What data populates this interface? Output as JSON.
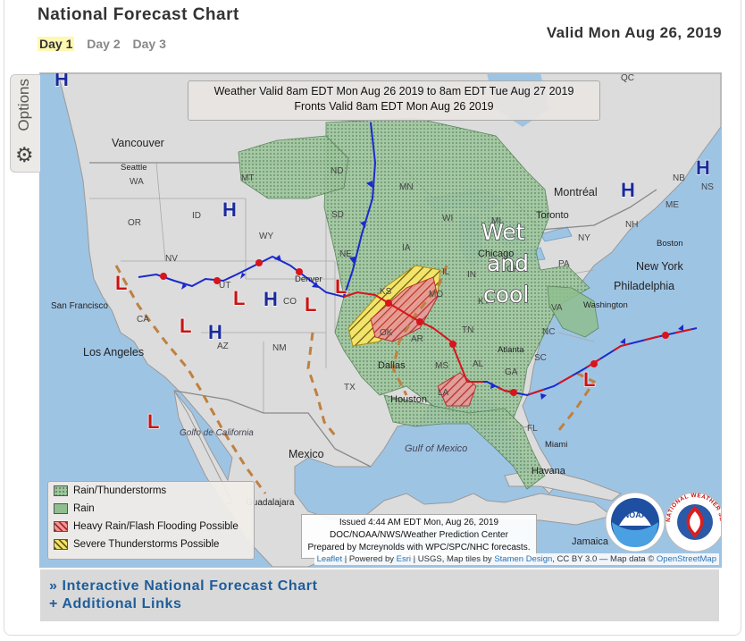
{
  "page": {
    "title": "National Forecast Chart",
    "valid": "Valid Mon Aug 26, 2019",
    "tabs": [
      {
        "label": "Day 1",
        "active": true
      },
      {
        "label": "Day 2",
        "active": false
      },
      {
        "label": "Day 3",
        "active": false
      }
    ]
  },
  "map": {
    "options_label": "Options",
    "options_icon": "gear-icon",
    "header_line1": "Weather Valid 8am EDT Mon Aug 26 2019 to 8am EDT Tue Aug 27 2019",
    "header_line2": "Fronts Valid 8am EDT Mon Aug 26 2019",
    "annotation": [
      "Wet",
      "and",
      "cool"
    ],
    "highs": [
      "H",
      "H",
      "H",
      "H",
      "H",
      "H"
    ],
    "lows": [
      "L",
      "L",
      "L",
      "L",
      "L",
      "L",
      "L"
    ],
    "cities": [
      "Vancouver",
      "Seattle",
      "San Francisco",
      "Los Angeles",
      "Denver",
      "Dallas",
      "Houston",
      "Atlanta",
      "Chicago",
      "Toronto",
      "Montréal",
      "New York",
      "Philadelphia",
      "Washington",
      "Boston",
      "Miami",
      "Havana",
      "Mexico",
      "Guadalajara",
      "Jamaica",
      "Gulf of Mexico",
      "Golfo de California"
    ],
    "states": [
      "WA",
      "OR",
      "CA",
      "ID",
      "MT",
      "WY",
      "NV",
      "UT",
      "AZ",
      "CO",
      "NM",
      "ND",
      "SD",
      "NE",
      "KS",
      "OK",
      "TX",
      "MN",
      "IA",
      "MO",
      "AR",
      "LA",
      "MS",
      "AL",
      "GA",
      "TN",
      "KY",
      "IL",
      "IN",
      "OH",
      "MI",
      "WI",
      "PA",
      "NY",
      "VA",
      "NC",
      "SC",
      "FL",
      "NH",
      "ME",
      "NB",
      "NS",
      "QC"
    ],
    "legend": [
      {
        "label": "Rain/Thunderstorms",
        "color": "#8fb88f"
      },
      {
        "label": "Rain",
        "color": "#8fbf8f"
      },
      {
        "label": "Heavy Rain/Flash Flooding Possible",
        "color": "#d95a5a"
      },
      {
        "label": "Severe Thunderstorms Possible",
        "color": "#e8d64a"
      }
    ],
    "issued_lines": [
      "Issued 4:44 AM EDT Mon, Aug 26, 2019",
      "DOC/NOAA/NWS/Weather Prediction Center",
      "Prepared by Mcreynolds with WPC/SPC/NHC forecasts."
    ],
    "logos": {
      "noaa": "NOAA",
      "nws": "NATIONAL WEATHER SERVICE"
    },
    "attribution": {
      "leaflet": "Leaflet",
      "powered": " | Powered by ",
      "esri": "Esri",
      "usgs": " | USGS, Map tiles by ",
      "stamen": "Stamen Design",
      "cc": ", CC BY 3.0 — Map data © ",
      "osm": "OpenStreetMap"
    }
  },
  "links": {
    "interactive": "» Interactive National Forecast Chart",
    "additional": "+ Additional Links"
  },
  "colors": {
    "cold_front": "#1a2acc",
    "warm_front": "#d8141c",
    "trough": "#c08040",
    "high": "#1a2a9a",
    "low": "#c81414"
  }
}
